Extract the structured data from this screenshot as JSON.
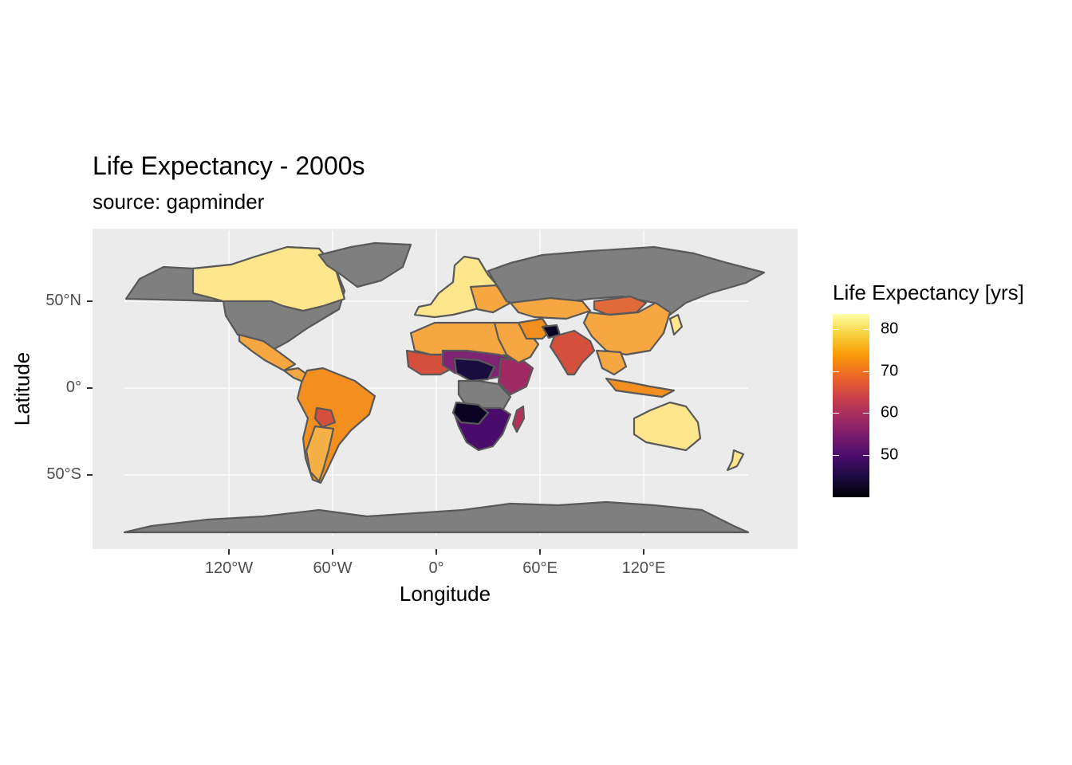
{
  "map": {
    "title": "Life Expectancy - 2000s",
    "subtitle": "source: gapminder",
    "xlabel": "Longitude",
    "ylabel": "Latitude",
    "x_ticks": [
      {
        "value": -120,
        "label": "120°W"
      },
      {
        "value": -60,
        "label": "60°W"
      },
      {
        "value": 0,
        "label": "0°"
      },
      {
        "value": 60,
        "label": "60°E"
      },
      {
        "value": 120,
        "label": "120°E"
      }
    ],
    "y_ticks": [
      {
        "value": 50,
        "label": "50°N"
      },
      {
        "value": 0,
        "label": "0°"
      },
      {
        "value": -50,
        "label": "50°S"
      }
    ],
    "legend": {
      "title": "Life Expectancy [yrs]",
      "ticks": [
        {
          "value": 80,
          "label": "80"
        },
        {
          "value": 70,
          "label": "70"
        },
        {
          "value": 60,
          "label": "60"
        },
        {
          "value": 50,
          "label": "50"
        }
      ],
      "range": [
        41,
        83
      ]
    },
    "no_data_color": "#7f7f7f",
    "border_color": "#595959",
    "panel_color": "#ebebeb"
  }
}
